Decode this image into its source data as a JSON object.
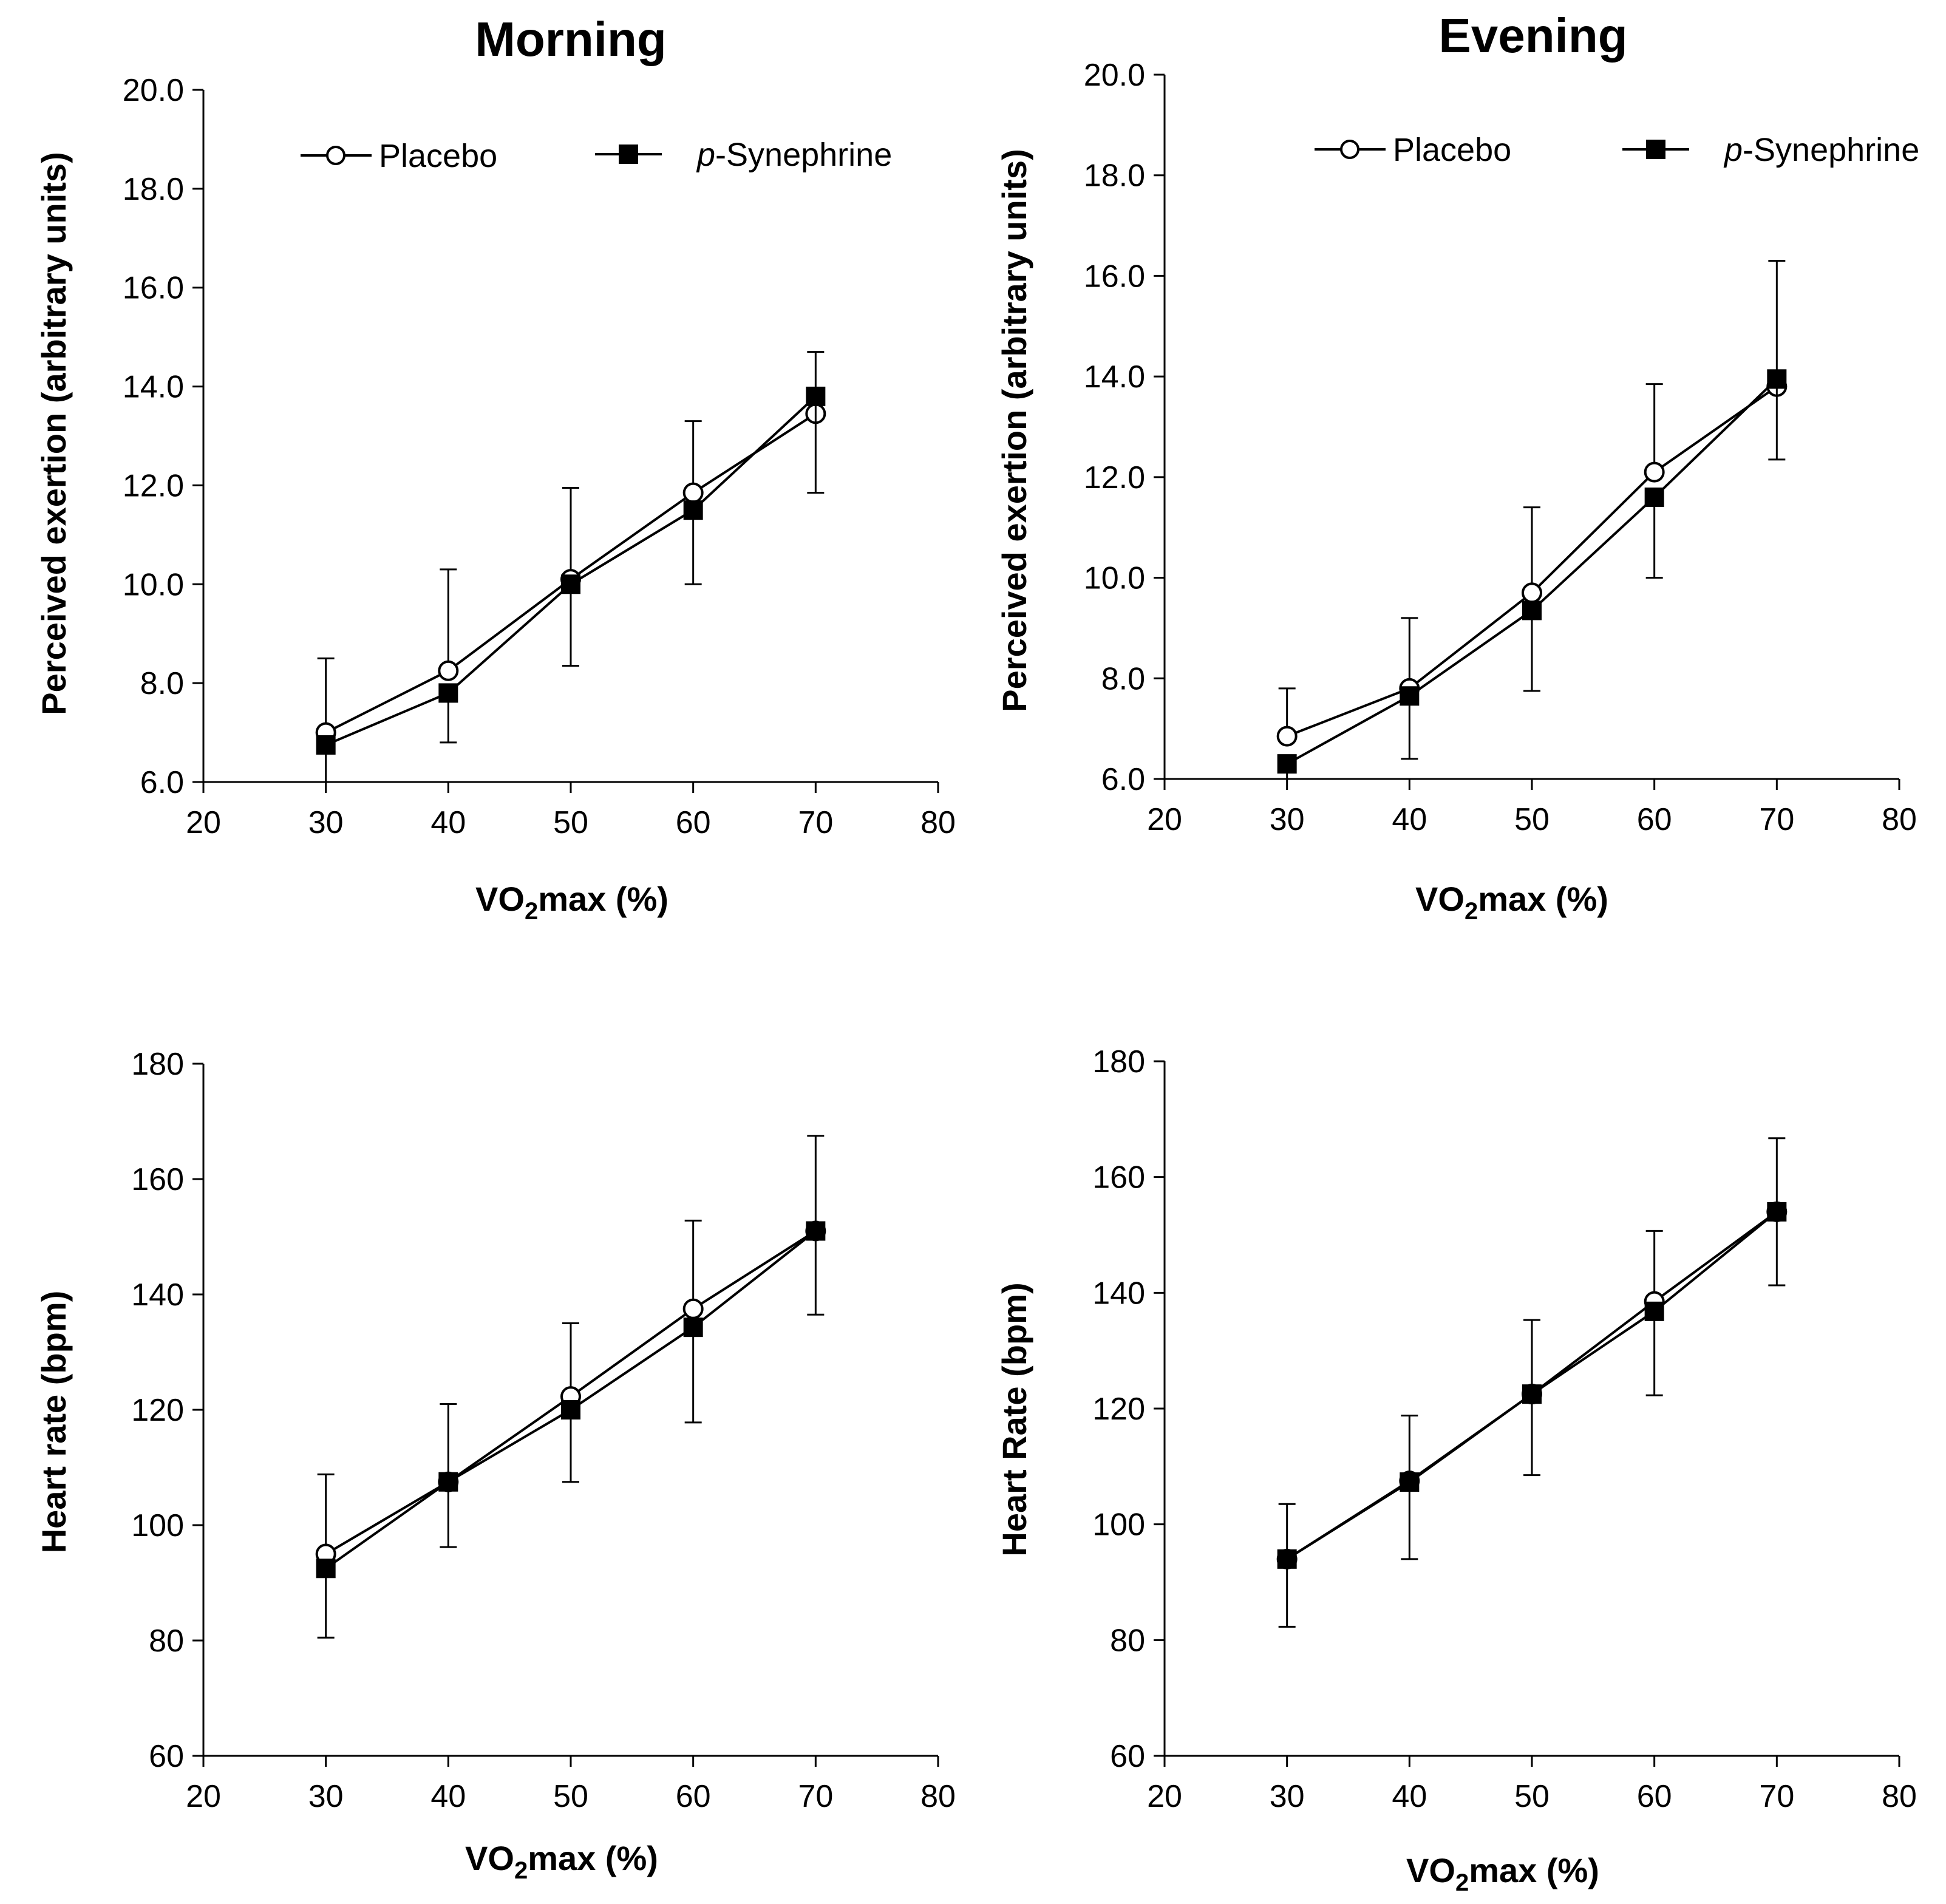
{
  "chart_data": [
    {
      "id": "morning-rpe",
      "type": "line",
      "title": "Morning",
      "xlabel": "VO2max (%)",
      "ylabel": "Perceived exertion (arbitrary units)",
      "xlim": [
        20,
        80
      ],
      "ylim": [
        6.0,
        20.0
      ],
      "xticks": [
        20,
        30,
        40,
        50,
        60,
        70,
        80
      ],
      "yticks": [
        6.0,
        8.0,
        10.0,
        12.0,
        14.0,
        16.0,
        18.0,
        20.0
      ],
      "ytick_labels": [
        "6.0",
        "8.0",
        "10.0",
        "12.0",
        "14.0",
        "16.0",
        "18.0",
        "20.0"
      ],
      "legend": true,
      "x": [
        30,
        40,
        50,
        60,
        70
      ],
      "series": [
        {
          "name": "Placebo",
          "marker": "open-circle",
          "values": [
            7.0,
            8.25,
            10.1,
            11.85,
            13.45
          ],
          "error_up": [
            1.5,
            2.05,
            1.85,
            1.45,
            1.25
          ],
          "error_down": [
            0,
            0,
            0,
            0,
            0
          ]
        },
        {
          "name": "p-Synephrine",
          "marker": "filled-square",
          "values": [
            6.75,
            7.8,
            10.0,
            11.5,
            13.8
          ],
          "error_up": [
            0,
            0,
            0,
            0,
            0
          ],
          "error_down": [
            0.75,
            1.0,
            1.65,
            1.5,
            1.95
          ]
        }
      ]
    },
    {
      "id": "evening-rpe",
      "type": "line",
      "title": "Evening",
      "xlabel": "VO2max (%)",
      "ylabel": "Perceived exertion (arbitrary units)",
      "xlim": [
        20,
        80
      ],
      "ylim": [
        6.0,
        20.0
      ],
      "xticks": [
        20,
        30,
        40,
        50,
        60,
        70,
        80
      ],
      "yticks": [
        6.0,
        8.0,
        10.0,
        12.0,
        14.0,
        16.0,
        18.0,
        20.0
      ],
      "ytick_labels": [
        "6.0",
        "8.0",
        "10.0",
        "12.0",
        "14.0",
        "16.0",
        "18.0",
        "20.0"
      ],
      "legend": true,
      "x": [
        30,
        40,
        50,
        60,
        70
      ],
      "series": [
        {
          "name": "Placebo",
          "marker": "open-circle",
          "values": [
            6.85,
            7.8,
            9.7,
            12.1,
            13.8
          ],
          "error_up": [
            0.95,
            1.4,
            1.7,
            1.75,
            2.5
          ],
          "error_down": [
            0,
            0,
            0,
            0,
            0
          ]
        },
        {
          "name": "p-Synephrine",
          "marker": "filled-square",
          "values": [
            6.3,
            7.65,
            9.35,
            11.6,
            13.95
          ],
          "error_up": [
            0,
            0,
            0,
            0,
            0
          ],
          "error_down": [
            0.3,
            1.25,
            1.6,
            1.6,
            1.6
          ]
        }
      ]
    },
    {
      "id": "morning-hr",
      "type": "line",
      "title": "",
      "xlabel": "VO2max (%)",
      "ylabel": "Heart rate (bpm)",
      "xlim": [
        20,
        80
      ],
      "ylim": [
        60,
        180
      ],
      "xticks": [
        20,
        30,
        40,
        50,
        60,
        70,
        80
      ],
      "yticks": [
        60,
        80,
        100,
        120,
        140,
        160,
        180
      ],
      "ytick_labels": [
        "60",
        "80",
        "100",
        "120",
        "140",
        "160",
        "180"
      ],
      "legend": false,
      "x": [
        30,
        40,
        50,
        60,
        70
      ],
      "series": [
        {
          "name": "Placebo",
          "marker": "open-circle",
          "values": [
            95,
            107.5,
            122.3,
            137.5,
            151
          ],
          "error_up": [
            13.8,
            13.5,
            12.7,
            15.3,
            16.5
          ],
          "error_down": [
            0,
            0,
            0,
            0,
            0
          ]
        },
        {
          "name": "p-Synephrine",
          "marker": "filled-square",
          "values": [
            92.5,
            107.5,
            120,
            134.3,
            151
          ],
          "error_up": [
            0,
            0,
            0,
            0,
            0
          ],
          "error_down": [
            12,
            11.3,
            12.5,
            16.5,
            14.5
          ]
        }
      ]
    },
    {
      "id": "evening-hr",
      "type": "line",
      "title": "",
      "xlabel": "VO2max (%)",
      "ylabel": "Heart Rate (bpm)",
      "xlim": [
        20,
        80
      ],
      "ylim": [
        60,
        180
      ],
      "xticks": [
        20,
        30,
        40,
        50,
        60,
        70,
        80
      ],
      "yticks": [
        60,
        80,
        100,
        120,
        140,
        160,
        180
      ],
      "ytick_labels": [
        "60",
        "80",
        "100",
        "120",
        "140",
        "160",
        "180"
      ],
      "legend": false,
      "x": [
        30,
        40,
        50,
        60,
        70
      ],
      "series": [
        {
          "name": "Placebo",
          "marker": "open-circle",
          "values": [
            94,
            107.5,
            122.5,
            138.5,
            154
          ],
          "error_up": [
            9.5,
            11.3,
            12.8,
            12.2,
            12.7
          ],
          "error_down": [
            0,
            0,
            0,
            0,
            0
          ]
        },
        {
          "name": "p-Synephrine",
          "marker": "filled-square",
          "values": [
            94,
            107.3,
            122.5,
            136.8,
            154
          ],
          "error_up": [
            0,
            0,
            0,
            0,
            0
          ],
          "error_down": [
            11.7,
            13.3,
            14,
            14.5,
            12.7
          ]
        }
      ]
    }
  ],
  "legend_labels": {
    "placebo": "Placebo",
    "synephrine_prefix": "p",
    "synephrine_rest": "-Synephrine"
  },
  "axis_text": {
    "vo2_prefix": "VO",
    "vo2_sub": "2",
    "vo2_suffix": "max (%)"
  }
}
